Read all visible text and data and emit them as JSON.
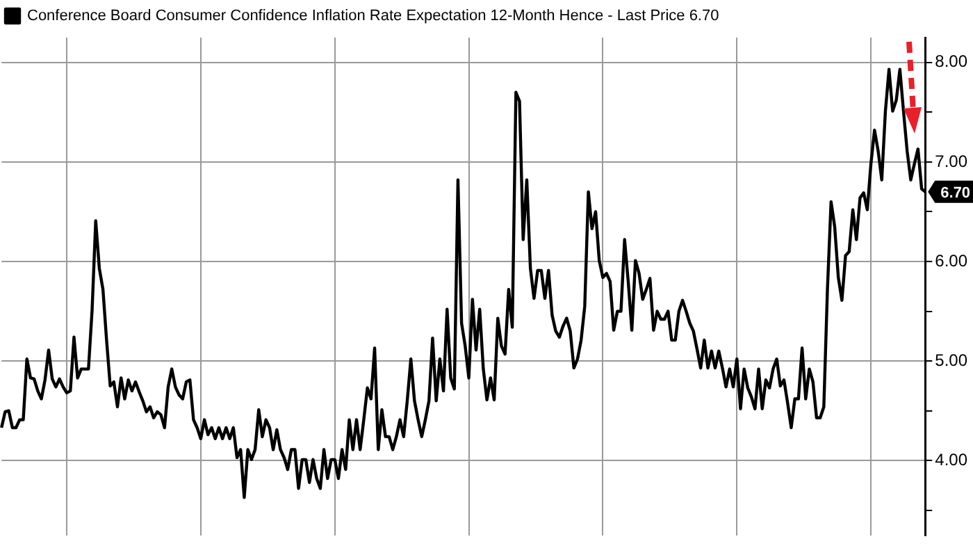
{
  "chart_data": {
    "type": "line",
    "categories": [
      null,
      null,
      null,
      null,
      null,
      null,
      null,
      null,
      null,
      null,
      null,
      null,
      null,
      null,
      null,
      null,
      null,
      null,
      null,
      null,
      null,
      null,
      null,
      null,
      null,
      null,
      null,
      null,
      null,
      null,
      null,
      null,
      null,
      null,
      null,
      null,
      null,
      null,
      null,
      null,
      null,
      null,
      null,
      null,
      null,
      null,
      null,
      null,
      null,
      null,
      null,
      null,
      null,
      null,
      null,
      null,
      null,
      null,
      null,
      null,
      null,
      null,
      null,
      null,
      null,
      null,
      null,
      null,
      null,
      null,
      null,
      null,
      null,
      null,
      null,
      null,
      null,
      null,
      null,
      null,
      null,
      null,
      null,
      null,
      null,
      null,
      null,
      null,
      null,
      null,
      null,
      null,
      null,
      null,
      null,
      null,
      null,
      null,
      null,
      null,
      null,
      null,
      null,
      null,
      null,
      null,
      null,
      null,
      null,
      null,
      null,
      null,
      null,
      null,
      null,
      null,
      null,
      null,
      null,
      null,
      null,
      null,
      null,
      null,
      null,
      null,
      null,
      null,
      null,
      null,
      null,
      null,
      null,
      null,
      null,
      null,
      null,
      null,
      null,
      null,
      null,
      null,
      null,
      null,
      null,
      null,
      null,
      null,
      null,
      null,
      null,
      null,
      null,
      null,
      null,
      null,
      null,
      null,
      null,
      null,
      null,
      null,
      null,
      null,
      null,
      null,
      null,
      null,
      null,
      null,
      null,
      null,
      null,
      null,
      null,
      null,
      null,
      null,
      null,
      null,
      null,
      null,
      null,
      null,
      null,
      null,
      null,
      null,
      null,
      null,
      null,
      null,
      null,
      null,
      null,
      null,
      null,
      null,
      null,
      null,
      null,
      null,
      null,
      null,
      null,
      null,
      null,
      null,
      null,
      null,
      null,
      null,
      null,
      null,
      null,
      null,
      null,
      null,
      null,
      null,
      null,
      null,
      null,
      null,
      null,
      null,
      null,
      null,
      null,
      null,
      null,
      null,
      null,
      null,
      null,
      null,
      null,
      null,
      null,
      null,
      null,
      null,
      null,
      null,
      null,
      null,
      null,
      null,
      null,
      null,
      null,
      null,
      null,
      null,
      null,
      null
    ],
    "series": [
      {
        "name": "Conference Board Consumer Confidence Inflation Rate Expectation 12-Month Hence - Last Price 6.70",
        "color": "#000000",
        "values": [
          4.33,
          4.49,
          4.5,
          4.33,
          4.33,
          4.41,
          4.41,
          5.02,
          4.83,
          4.82,
          4.7,
          4.62,
          4.81,
          5.11,
          4.82,
          4.74,
          4.82,
          4.74,
          4.68,
          4.7,
          5.24,
          4.83,
          4.92,
          4.92,
          4.92,
          5.51,
          6.41,
          5.93,
          5.72,
          5.21,
          4.75,
          4.79,
          4.54,
          4.83,
          4.62,
          4.81,
          4.7,
          4.79,
          4.69,
          4.6,
          4.49,
          4.54,
          4.43,
          4.49,
          4.46,
          4.33,
          4.74,
          4.92,
          4.74,
          4.66,
          4.62,
          4.79,
          4.81,
          4.41,
          4.33,
          4.22,
          4.41,
          4.26,
          4.33,
          4.22,
          4.33,
          4.22,
          4.33,
          4.22,
          4.33,
          4.03,
          4.11,
          3.63,
          4.11,
          4.01,
          4.11,
          4.51,
          4.24,
          4.41,
          4.33,
          4.11,
          4.31,
          4.11,
          4.03,
          3.91,
          4.11,
          4.11,
          3.72,
          4.01,
          4.01,
          3.78,
          4.01,
          3.82,
          3.72,
          4.11,
          3.82,
          4.01,
          4.01,
          3.82,
          4.11,
          3.91,
          4.41,
          4.11,
          4.41,
          4.11,
          4.41,
          4.73,
          4.62,
          5.13,
          4.11,
          4.51,
          4.24,
          4.24,
          4.11,
          4.24,
          4.41,
          4.24,
          4.6,
          5.02,
          4.6,
          4.41,
          4.24,
          4.41,
          4.6,
          5.23,
          4.6,
          5.02,
          4.7,
          5.52,
          4.83,
          4.72,
          6.82,
          5.38,
          5.15,
          4.83,
          5.62,
          5.11,
          5.52,
          4.92,
          4.61,
          4.83,
          4.61,
          5.43,
          5.15,
          5.07,
          5.72,
          5.34,
          7.7,
          7.61,
          6.22,
          6.82,
          5.93,
          5.63,
          5.91,
          5.91,
          5.63,
          5.91,
          5.46,
          5.3,
          5.24,
          5.35,
          5.43,
          5.3,
          4.93,
          5.02,
          5.21,
          5.55,
          6.7,
          6.33,
          6.5,
          6.01,
          5.84,
          5.88,
          5.8,
          5.31,
          5.5,
          5.5,
          6.22,
          5.8,
          5.31,
          6.01,
          5.88,
          5.62,
          5.72,
          5.83,
          5.31,
          5.5,
          5.42,
          5.42,
          5.5,
          5.21,
          5.21,
          5.5,
          5.61,
          5.5,
          5.38,
          5.3,
          5.12,
          4.93,
          5.21,
          4.93,
          5.1,
          4.93,
          5.1,
          4.93,
          4.74,
          4.92,
          4.74,
          5.02,
          4.52,
          4.92,
          4.73,
          4.64,
          4.52,
          4.92,
          4.52,
          4.81,
          4.73,
          4.92,
          5.02,
          4.75,
          4.81,
          4.58,
          4.33,
          4.62,
          4.62,
          5.13,
          4.62,
          4.92,
          4.79,
          4.43,
          4.43,
          4.54,
          5.72,
          6.6,
          6.35,
          5.84,
          5.61,
          6.06,
          6.1,
          6.52,
          6.22,
          6.64,
          6.69,
          6.52,
          6.98,
          7.32,
          7.11,
          6.82,
          7.51,
          7.93,
          7.51,
          7.62,
          7.93,
          7.51,
          7.11,
          6.82,
          6.98,
          7.13,
          6.73,
          6.7
        ],
        "value_labels": [
          null,
          null,
          null,
          null,
          null,
          null,
          null,
          null,
          null,
          null,
          null,
          null,
          null,
          null,
          null,
          null,
          null,
          null,
          null,
          null,
          null,
          null,
          null,
          null,
          null,
          null,
          null,
          null,
          null,
          null,
          null,
          null,
          null,
          null,
          null,
          null,
          null,
          null,
          null,
          null,
          null,
          null,
          null,
          null,
          null,
          null,
          null,
          null,
          null,
          null,
          null,
          null,
          null,
          null,
          null,
          null,
          null,
          null,
          null,
          null,
          null,
          null,
          null,
          null,
          null,
          null,
          null,
          null,
          null,
          null,
          null,
          null,
          null,
          null,
          null,
          null,
          null,
          null,
          null,
          null,
          null,
          null,
          null,
          null,
          null,
          null,
          null,
          null,
          null,
          null,
          null,
          null,
          null,
          null,
          null,
          null,
          null,
          null,
          null,
          null,
          null,
          null,
          null,
          null,
          null,
          null,
          null,
          null,
          null,
          null,
          null,
          null,
          null,
          null,
          null,
          null,
          null,
          null,
          null,
          null,
          null,
          null,
          null,
          null,
          null,
          null,
          null,
          null,
          null,
          null,
          null,
          null,
          null,
          null,
          null,
          null,
          null,
          null,
          null,
          null,
          null,
          null,
          null,
          null,
          null,
          null,
          null,
          null,
          null,
          null,
          null,
          null,
          null,
          null,
          null,
          null,
          null,
          null,
          null,
          null,
          null,
          null,
          null,
          null,
          null,
          null,
          null,
          null,
          null,
          null,
          null,
          null,
          null,
          null,
          null,
          null,
          null,
          null,
          null,
          null,
          null,
          null,
          null,
          null,
          null,
          null,
          null,
          null,
          null,
          null,
          null,
          null,
          null,
          null,
          null,
          null,
          null,
          null,
          null,
          null,
          null,
          null,
          null,
          null,
          null,
          null,
          null,
          null,
          null,
          null,
          null,
          null,
          null,
          null,
          null,
          null,
          null,
          null,
          null,
          null,
          null,
          null,
          null,
          null,
          null,
          null,
          null,
          null,
          null,
          null,
          null,
          null,
          null,
          null,
          null,
          null,
          null,
          null,
          null,
          null,
          null,
          null,
          null,
          null,
          null,
          null,
          null,
          null,
          null,
          null,
          null,
          null,
          null,
          null,
          null,
          "6.70"
        ]
      }
    ],
    "ylim": [
      3.25,
      8.25
    ],
    "yticks": [
      {
        "value": 3.5,
        "label": null
      },
      {
        "value": 4,
        "label": "4.00"
      },
      {
        "value": 4.5,
        "label": null
      },
      {
        "value": 5,
        "label": "5.00"
      },
      {
        "value": 5.5,
        "label": null
      },
      {
        "value": 6,
        "label": "6.00"
      },
      {
        "value": 6.5,
        "label": null
      },
      {
        "value": 7,
        "label": "7.00"
      },
      {
        "value": 7.5,
        "label": null
      },
      {
        "value": 8,
        "label": "8.00"
      }
    ],
    "grid": true,
    "legend": "top left",
    "marker": "none",
    "line_style": "solid",
    "tick_labels": "y"
  }
}
